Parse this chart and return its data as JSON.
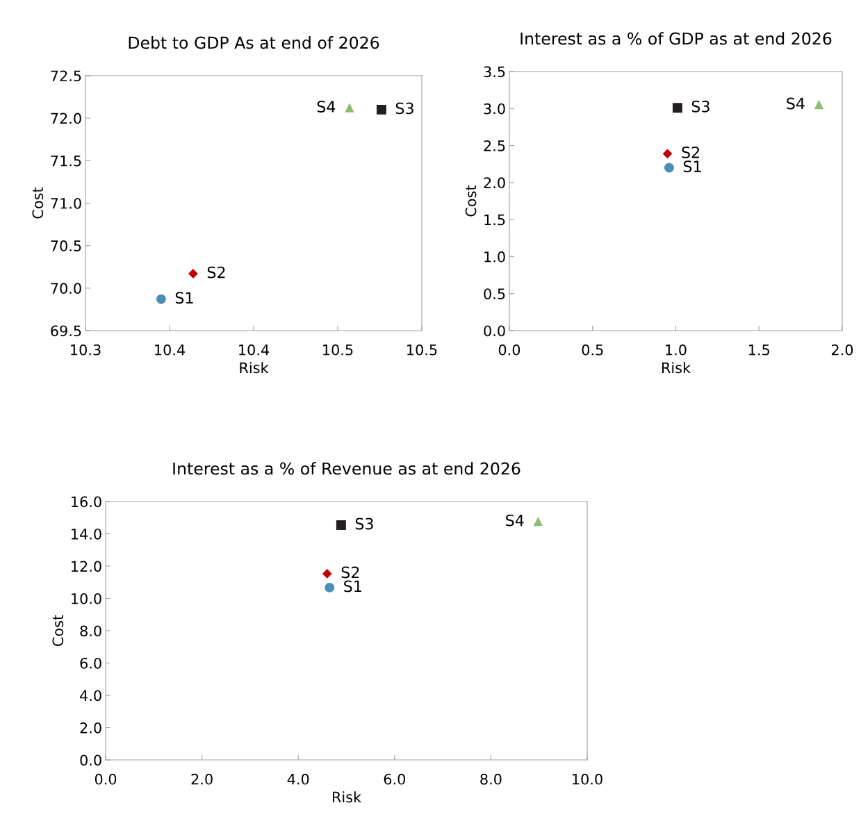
{
  "chart_data": [
    {
      "type": "scatter",
      "title": "Debt to GDP As at end of 2026",
      "xlabel": "Risk",
      "ylabel": "Cost",
      "grid": false,
      "legend": false,
      "xlim": [
        10.3,
        10.5
      ],
      "xticks": [
        10.3,
        {
          "value": 10.35,
          "label": "10.4"
        },
        10.4,
        {
          "value": 10.45,
          "label": "10.5"
        },
        10.5
      ],
      "ylim": [
        69.5,
        72.5
      ],
      "yticks": [
        {
          "value": 69.5,
          "label": "69.5"
        },
        {
          "value": 70.0,
          "label": "70.0"
        },
        {
          "value": 70.5,
          "label": "70.5"
        },
        {
          "value": 71.0,
          "label": "71.0"
        },
        {
          "value": 71.5,
          "label": "71.5"
        },
        {
          "value": 72.0,
          "label": "72.0"
        },
        {
          "value": 72.5,
          "label": "72.5"
        }
      ],
      "series": [
        {
          "name": "S1",
          "color": "#4a8fb5",
          "marker": "circle",
          "x": [
            10.345
          ],
          "values": [
            69.87
          ]
        },
        {
          "name": "S2",
          "color": "#c00000",
          "marker": "diamond",
          "x": [
            10.364
          ],
          "values": [
            70.17
          ]
        },
        {
          "name": "S3",
          "color": "#231f20",
          "marker": "square",
          "x": [
            10.476
          ],
          "values": [
            72.1
          ]
        },
        {
          "name": "S4",
          "color": "#8fbc6e",
          "marker": "triangle",
          "x": [
            10.457
          ],
          "values": [
            72.12
          ]
        }
      ]
    },
    {
      "type": "scatter",
      "title": "Interest as a % of GDP as at end 2026",
      "xlabel": "Risk",
      "ylabel": "Cost",
      "grid": false,
      "legend": false,
      "xlim": [
        0,
        2
      ],
      "xticks": [
        {
          "value": 0,
          "label": "0.0"
        },
        0.5,
        {
          "value": 1,
          "label": "1.0"
        },
        1.5,
        {
          "value": 2,
          "label": "2.0"
        }
      ],
      "ylim": [
        0,
        3.5
      ],
      "yticks": [
        {
          "value": 0,
          "label": "0.0"
        },
        0.5,
        {
          "value": 1,
          "label": "1.0"
        },
        1.5,
        {
          "value": 2,
          "label": "2.0"
        },
        2.5,
        {
          "value": 3,
          "label": "3.0"
        },
        3.5
      ],
      "series": [
        {
          "name": "S1",
          "color": "#4a8fb5",
          "marker": "circle",
          "x": [
            0.96
          ],
          "values": [
            2.2
          ]
        },
        {
          "name": "S2",
          "color": "#c00000",
          "marker": "diamond",
          "x": [
            0.95
          ],
          "values": [
            2.39
          ]
        },
        {
          "name": "S3",
          "color": "#231f20",
          "marker": "square",
          "x": [
            1.01
          ],
          "values": [
            3.01
          ]
        },
        {
          "name": "S4",
          "color": "#8fbc6e",
          "marker": "triangle",
          "x": [
            1.86
          ],
          "values": [
            3.05
          ]
        }
      ]
    },
    {
      "type": "scatter",
      "title": "Interest as a % of Revenue as at end 2026",
      "xlabel": "Risk",
      "ylabel": "Cost",
      "grid": false,
      "legend": false,
      "xlim": [
        0,
        10
      ],
      "xticks": [
        {
          "value": 0,
          "label": "0.0"
        },
        {
          "value": 2,
          "label": "2.0"
        },
        {
          "value": 4,
          "label": "4.0"
        },
        {
          "value": 6,
          "label": "6.0"
        },
        {
          "value": 8,
          "label": "8.0"
        },
        {
          "value": 10,
          "label": "10.0"
        }
      ],
      "ylim": [
        0,
        16
      ],
      "yticks": [
        {
          "value": 0,
          "label": "0.0"
        },
        {
          "value": 2,
          "label": "2.0"
        },
        {
          "value": 4,
          "label": "4.0"
        },
        {
          "value": 6,
          "label": "6.0"
        },
        {
          "value": 8,
          "label": "8.0"
        },
        {
          "value": 10,
          "label": "10.0"
        },
        {
          "value": 12,
          "label": "12.0"
        },
        {
          "value": 14,
          "label": "14.0"
        },
        {
          "value": 16,
          "label": "16.0"
        }
      ],
      "series": [
        {
          "name": "S1",
          "color": "#4a8fb5",
          "marker": "circle",
          "x": [
            4.65
          ],
          "values": [
            10.67
          ]
        },
        {
          "name": "S2",
          "color": "#c00000",
          "marker": "diamond",
          "x": [
            4.6
          ],
          "values": [
            11.53
          ]
        },
        {
          "name": "S3",
          "color": "#231f20",
          "marker": "square",
          "x": [
            4.89
          ],
          "values": [
            14.54
          ]
        },
        {
          "name": "S4",
          "color": "#8fbc6e",
          "marker": "triangle",
          "x": [
            8.98
          ],
          "values": [
            14.75
          ]
        }
      ]
    }
  ]
}
